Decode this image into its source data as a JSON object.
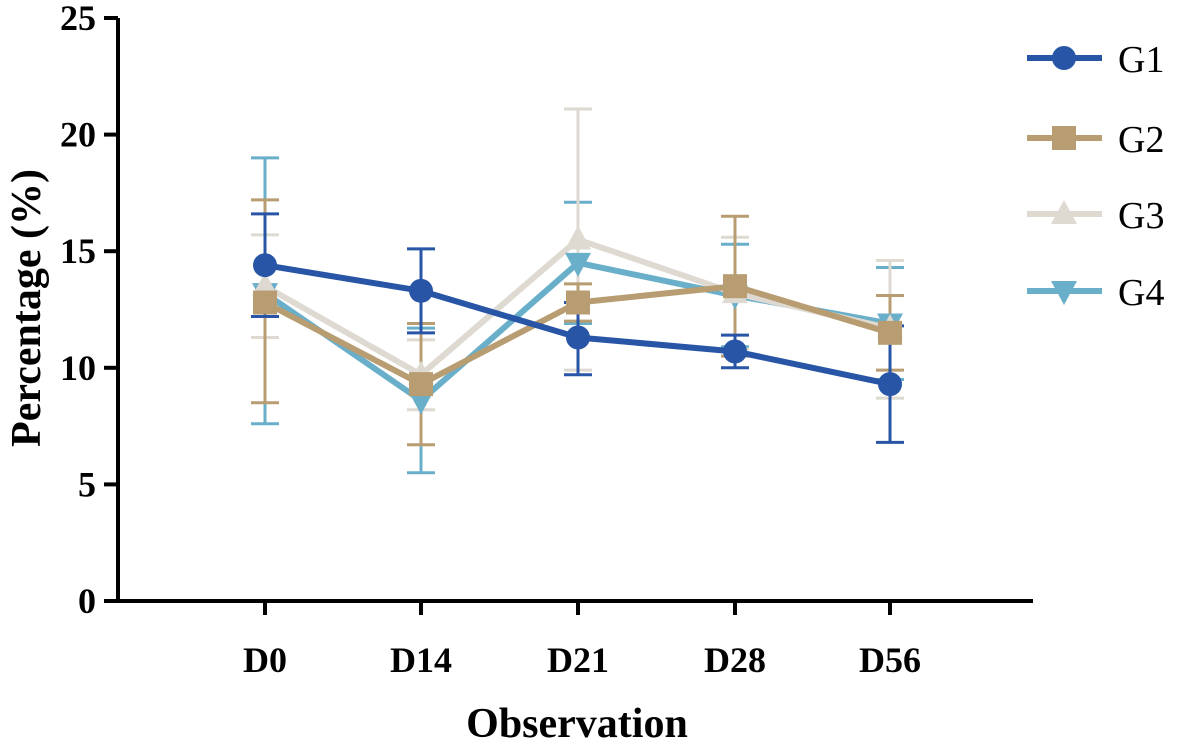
{
  "chart_data": {
    "type": "line",
    "categories": [
      "D0",
      "D14",
      "D21",
      "D28",
      "D56"
    ],
    "xlabel": "Observation",
    "ylabel": "Percentage (%)",
    "ylim": [
      0,
      25
    ],
    "yticks": [
      "0",
      "5",
      "10",
      "15",
      "20",
      "25"
    ],
    "grid": false,
    "legend_position": "top-right",
    "series": [
      {
        "name": "G1",
        "color": "#2855a6",
        "marker": "circle",
        "values": [
          14.4,
          13.3,
          11.3,
          10.7,
          9.3
        ],
        "err_low": [
          12.2,
          11.5,
          9.7,
          10.0,
          6.8
        ],
        "err_high": [
          16.6,
          15.1,
          12.8,
          11.4,
          11.8
        ]
      },
      {
        "name": "G2",
        "color": "#b89c72",
        "marker": "square",
        "values": [
          12.8,
          9.3,
          12.8,
          13.5,
          11.5
        ],
        "err_low": [
          8.5,
          6.7,
          12.0,
          10.5,
          9.9
        ],
        "err_high": [
          17.2,
          11.9,
          13.6,
          16.5,
          13.1
        ]
      },
      {
        "name": "G3",
        "color": "#dedad2",
        "marker": "triangle-up",
        "values": [
          13.5,
          9.7,
          15.5,
          13.2,
          11.7
        ],
        "err_low": [
          11.3,
          8.2,
          9.9,
          10.8,
          8.7
        ],
        "err_high": [
          15.7,
          11.2,
          21.1,
          15.6,
          14.6
        ]
      },
      {
        "name": "G4",
        "color": "#6aafca",
        "marker": "triangle-down",
        "values": [
          13.2,
          8.6,
          14.5,
          13.1,
          11.9
        ],
        "err_low": [
          7.6,
          5.5,
          11.9,
          10.9,
          9.5
        ],
        "err_high": [
          19.0,
          11.7,
          17.1,
          15.3,
          14.3
        ]
      }
    ]
  }
}
